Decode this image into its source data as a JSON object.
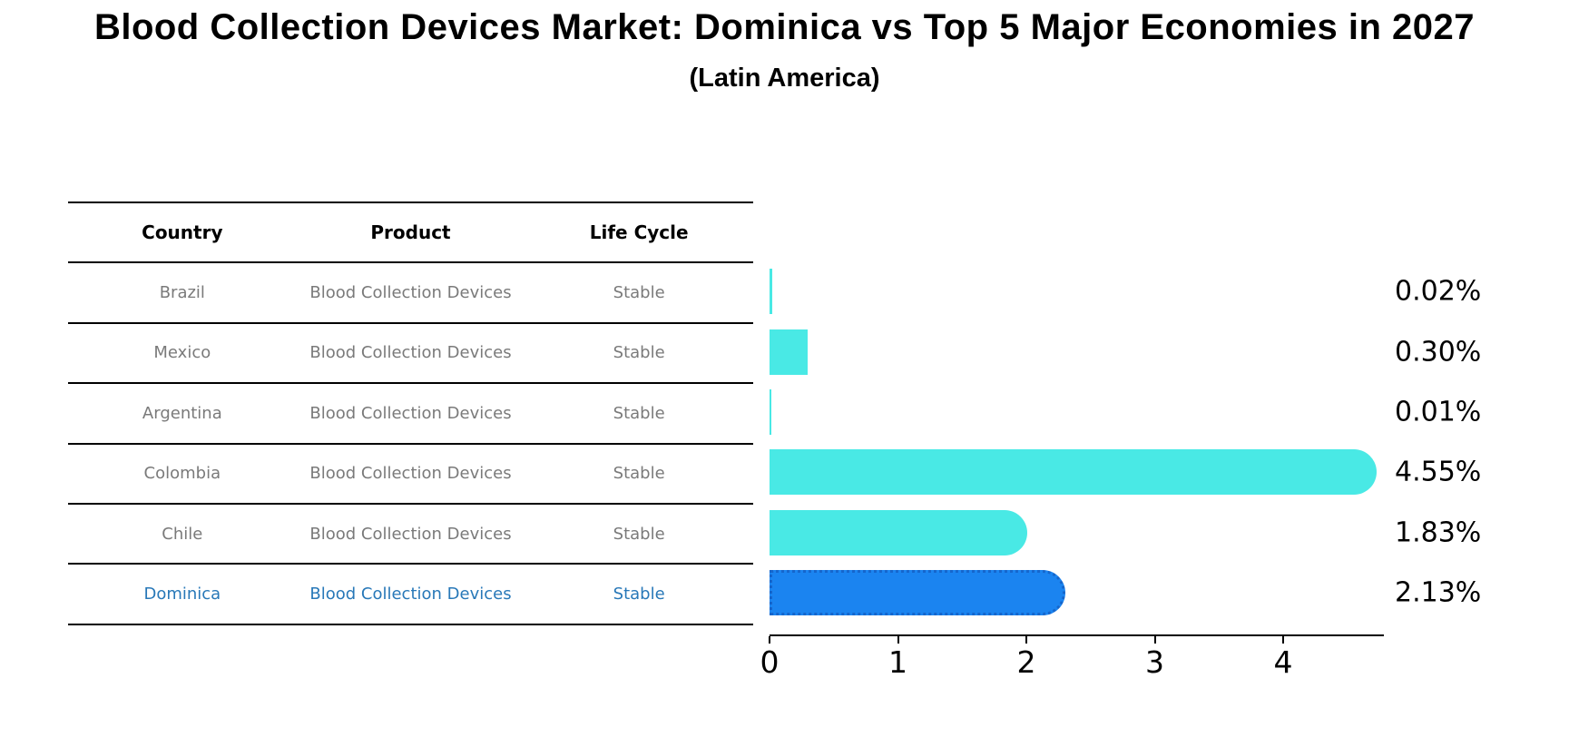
{
  "title": "Blood Collection Devices Market: Dominica vs Top 5 Major Economies in 2027",
  "subtitle": "(Latin America)",
  "table": {
    "columns": [
      "Country",
      "Product",
      "Life Cycle"
    ],
    "rows": [
      {
        "country": "Brazil",
        "product": "Blood Collection Devices",
        "life_cycle": "Stable",
        "highlight": false
      },
      {
        "country": "Mexico",
        "product": "Blood Collection Devices",
        "life_cycle": "Stable",
        "highlight": false
      },
      {
        "country": "Argentina",
        "product": "Blood Collection Devices",
        "life_cycle": "Stable",
        "highlight": false
      },
      {
        "country": "Colombia",
        "product": "Blood Collection Devices",
        "life_cycle": "Stable",
        "highlight": false
      },
      {
        "country": "Chile",
        "product": "Blood Collection Devices",
        "life_cycle": "Stable",
        "highlight": false
      },
      {
        "country": "Dominica",
        "product": "Blood Collection Devices",
        "life_cycle": "Stable",
        "highlight": true
      }
    ]
  },
  "chart_data": {
    "type": "bar",
    "orientation": "horizontal",
    "title": "Blood Collection Devices Market: Dominica vs Top 5 Major Economies in 2027",
    "subtitle": "(Latin America)",
    "categories": [
      "Brazil",
      "Mexico",
      "Argentina",
      "Colombia",
      "Chile",
      "Dominica"
    ],
    "values": [
      0.02,
      0.3,
      0.01,
      4.55,
      1.83,
      2.13
    ],
    "value_labels": [
      "0.02%",
      "0.30%",
      "0.01%",
      "4.55%",
      "1.83%",
      "2.13%"
    ],
    "highlight_category": "Dominica",
    "xlim": [
      0,
      4.78
    ],
    "xticks": [
      0,
      1,
      2,
      3,
      4
    ],
    "grid": false,
    "legend": false,
    "colors": {
      "bar_default": "#49e9e5",
      "bar_highlight": "#1b84f0",
      "bar_highlight_border": "#1566cc",
      "highlight_text": "#2878b8",
      "table_text": "#7a7a7a",
      "axis_text": "#000000"
    }
  }
}
